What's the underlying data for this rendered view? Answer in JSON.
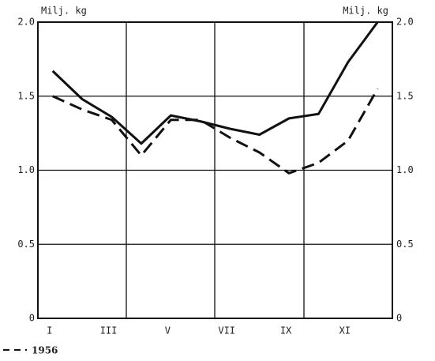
{
  "chart_data": {
    "type": "line",
    "y_label": "Milj. kg",
    "y2_label": "Milj. kg",
    "categories": [
      "I",
      null,
      "III",
      null,
      "V",
      null,
      "VII",
      null,
      "IX",
      null,
      "XI",
      null
    ],
    "series": [
      {
        "color": "#111111",
        "dash": "solid",
        "values": [
          1.67,
          1.48,
          1.36,
          1.18,
          1.37,
          1.33,
          1.28,
          1.24,
          1.35,
          1.38,
          1.73,
          2.0
        ]
      },
      {
        "name": "1956",
        "color": "#111111",
        "dash": "dashed",
        "values": [
          1.5,
          1.41,
          1.34,
          1.1,
          1.34,
          1.34,
          1.22,
          1.12,
          0.98,
          1.05,
          1.2,
          1.55
        ]
      }
    ],
    "ylim": [
      0,
      2
    ],
    "yticks": [
      0,
      {
        "value": 0.5,
        "label": "0.5"
      },
      {
        "value": 1,
        "label": "1.0"
      },
      {
        "value": 1.5,
        "label": "1.5"
      },
      {
        "value": 2,
        "label": "2.0"
      }
    ],
    "grid": true
  }
}
